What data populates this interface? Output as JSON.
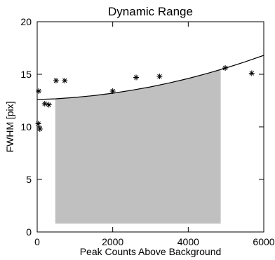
{
  "chart_data": {
    "type": "scatter",
    "title": "Dynamic Range",
    "xlabel": "Peak Counts Above Background",
    "ylabel": "FWHM [pix]",
    "xlim": [
      0,
      6000
    ],
    "ylim": [
      0,
      20
    ],
    "x_ticks": [
      0,
      2000,
      4000,
      6000
    ],
    "x_tick_labels": [
      "0",
      "2000",
      "4000",
      "6000"
    ],
    "y_ticks": [
      0,
      5,
      10,
      15,
      20
    ],
    "y_tick_labels": [
      "0",
      "5",
      "10",
      "15",
      "20"
    ],
    "grid": false,
    "legend": "none",
    "marker": "asterisk",
    "points": [
      {
        "x": 40,
        "y": 13.4
      },
      {
        "x": 30,
        "y": 10.3
      },
      {
        "x": 70,
        "y": 9.8
      },
      {
        "x": 200,
        "y": 12.2
      },
      {
        "x": 310,
        "y": 12.1
      },
      {
        "x": 500,
        "y": 14.4
      },
      {
        "x": 730,
        "y": 14.4
      },
      {
        "x": 2000,
        "y": 13.4
      },
      {
        "x": 2620,
        "y": 14.7
      },
      {
        "x": 3240,
        "y": 14.8
      },
      {
        "x": 4980,
        "y": 15.6
      },
      {
        "x": 5680,
        "y": 15.1
      }
    ],
    "fit_curve": {
      "form": "quadratic",
      "x": [
        0,
        500,
        1000,
        1500,
        2000,
        2500,
        3000,
        3500,
        4000,
        4500,
        5000,
        5500,
        6000
      ],
      "y": [
        12.6,
        12.67,
        12.8,
        12.97,
        13.2,
        13.48,
        13.8,
        14.18,
        14.6,
        15.08,
        15.6,
        16.18,
        16.8
      ]
    },
    "shaded_region": {
      "x_range": [
        480,
        4860
      ],
      "y_bottom": 0.8,
      "top_follows": "fit_curve",
      "color": "#c0c0c0"
    }
  }
}
